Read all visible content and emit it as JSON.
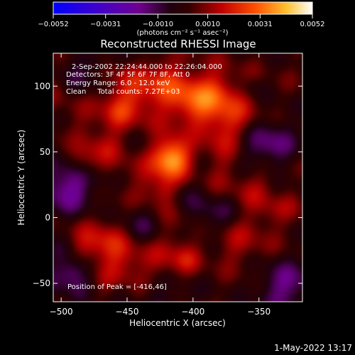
{
  "chart_data": {
    "type": "heatmap",
    "title": "Reconstructed RHESSI Image",
    "xlabel": "Heliocentric X (arcsec)",
    "ylabel": "Heliocentric Y (arcsec)",
    "xlim": [
      -506,
      -317
    ],
    "ylim": [
      -64,
      125
    ],
    "x_ticks": [
      -500,
      -450,
      -400,
      -350
    ],
    "x_tick_labels": [
      "−500",
      "−450",
      "−400",
      "−350"
    ],
    "y_ticks": [
      -50,
      0,
      50,
      100
    ],
    "y_tick_labels": [
      "−50",
      "0",
      "50",
      "100"
    ],
    "colorbar": {
      "min": -0.0052,
      "max": 0.0052,
      "ticks": [
        -0.0052,
        -0.0031,
        -0.001,
        0.001,
        0.0031,
        0.0052
      ],
      "tick_labels": [
        "−0.0052",
        "−0.0031",
        "−0.0010",
        "0.0010",
        "0.0031",
        "0.0052"
      ],
      "unit_label": "(photons cm⁻² s⁻¹ asec⁻²)",
      "colormap": [
        "#0000ff",
        "#6a00aa",
        "#1a0000",
        "#cc0000",
        "#ff6000",
        "#ffd040",
        "#ffffff"
      ]
    },
    "annotations": [
      "2-Sep-2002 22:24:44.000 to 22:26:04.000",
      "Detectors: 3F 4F 5F 6F 7F 8F, Att 0",
      "Energy Range: 6.0 - 12.0 keV",
      "Clean     Total counts: 7.27E+03"
    ],
    "peak_label": "Position of Peak = [-416,46]",
    "peak": [
      -416,
      46
    ],
    "bright_regions": [
      {
        "x": -416,
        "y": 46,
        "amplitude": 1.0
      },
      {
        "x": -400,
        "y": 90,
        "amplitude": 0.55
      },
      {
        "x": -445,
        "y": 95,
        "amplitude": 0.4
      },
      {
        "x": -370,
        "y": 75,
        "amplitude": 0.35
      },
      {
        "x": -470,
        "y": 65,
        "amplitude": 0.3
      },
      {
        "x": -430,
        "y": 20,
        "amplitude": 0.3
      },
      {
        "x": -470,
        "y": -15,
        "amplitude": 0.3
      },
      {
        "x": -340,
        "y": 20,
        "amplitude": 0.3
      },
      {
        "x": -420,
        "y": -30,
        "amplitude": 0.25
      },
      {
        "x": -370,
        "y": -20,
        "amplitude": 0.25
      },
      {
        "x": -460,
        "y": -45,
        "amplitude": 0.2
      }
    ],
    "dim_regions": [
      {
        "x": -495,
        "y": 25,
        "amplitude": 0.5
      },
      {
        "x": -345,
        "y": 55,
        "amplitude": 0.45
      },
      {
        "x": -440,
        "y": -5,
        "amplitude": 0.4
      },
      {
        "x": -330,
        "y": -50,
        "amplitude": 0.45
      },
      {
        "x": -480,
        "y": 110,
        "amplitude": 0.35
      },
      {
        "x": -390,
        "y": 0,
        "amplitude": 0.3
      },
      {
        "x": -420,
        "y": -60,
        "amplitude": 0.4
      },
      {
        "x": -490,
        "y": -40,
        "amplitude": 0.35
      }
    ]
  },
  "footer_timestamp": "1-May-2022 13:17"
}
